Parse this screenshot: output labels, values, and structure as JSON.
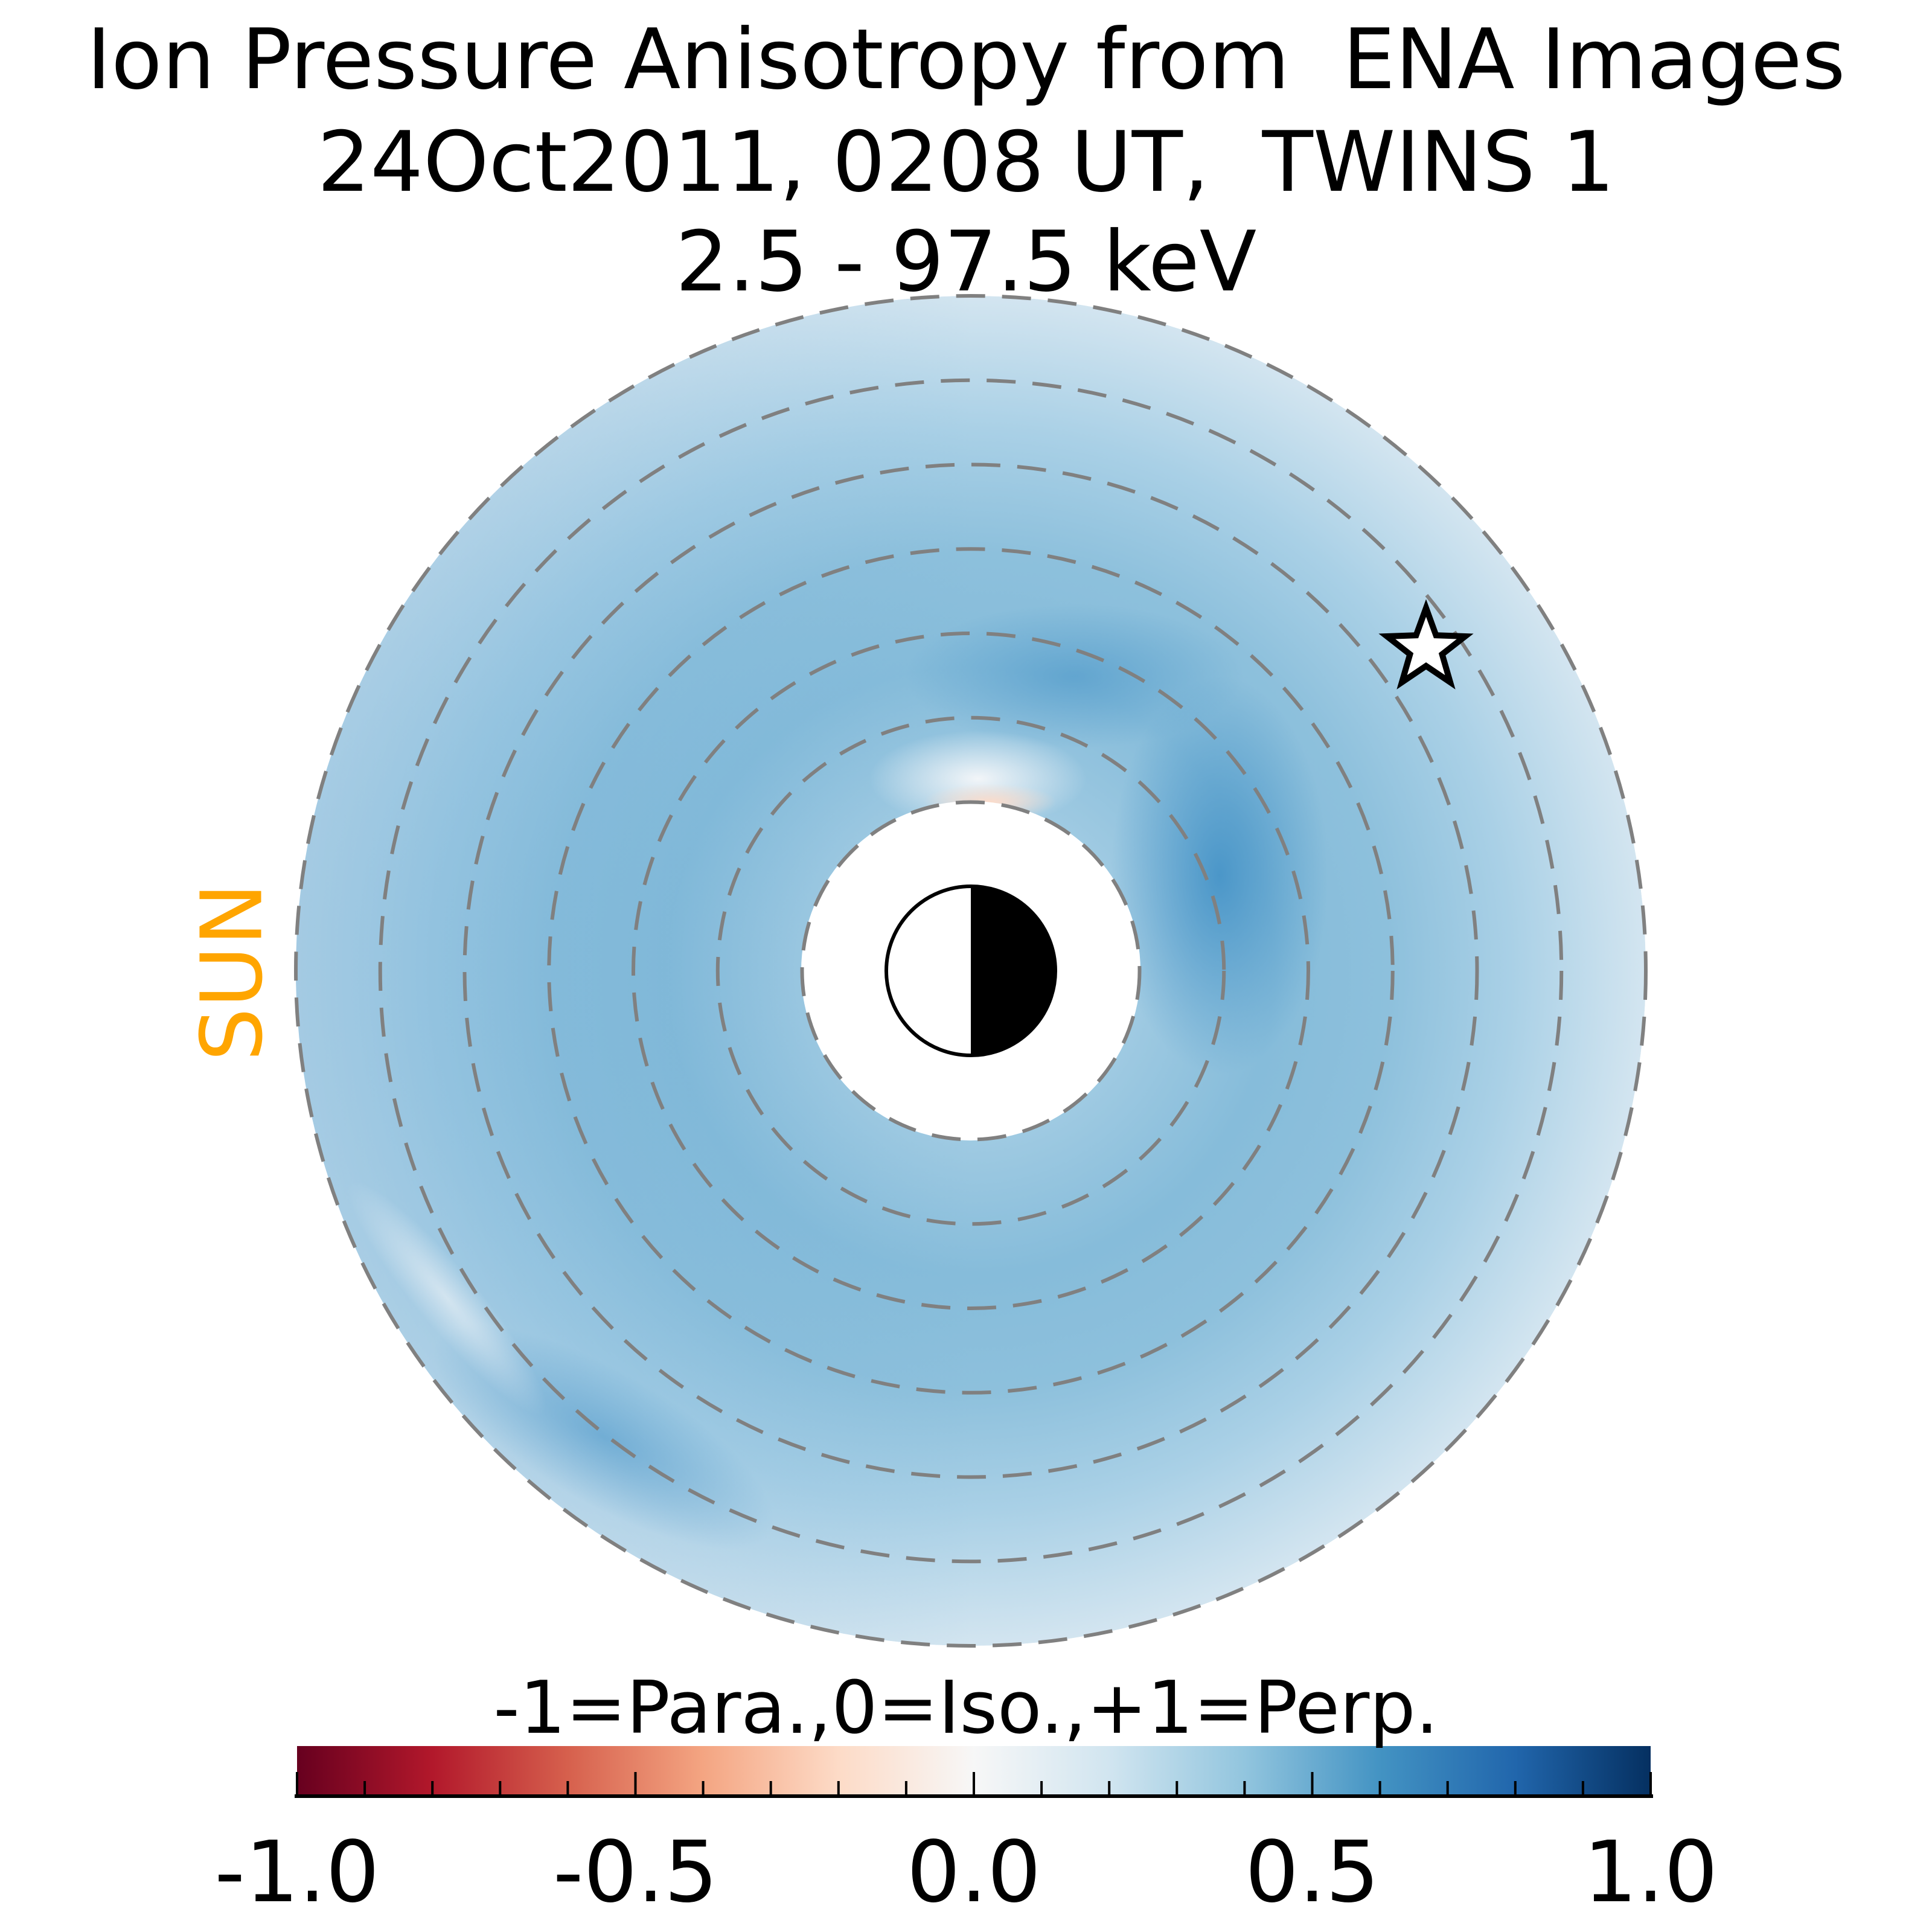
{
  "title_lines": [
    "Ion Pressure Anisotropy from  ENA Images",
    "24Oct2011, 0208 UT,  TWINS 1",
    "2.5 - 97.5 keV"
  ],
  "sun_label": "SUN",
  "colors": {
    "sun": "#FFA500",
    "ring": "#808080"
  },
  "chart_data": {
    "type": "heatmap",
    "title": "Ion Pressure Anisotropy from  ENA Images / 24Oct2011, 0208 UT,  TWINS 1 / 2.5 - 97.5 keV",
    "description_axes": "equatorial polar map, dashed rings every 1 Re",
    "ring_radii_re": [
      2,
      3,
      4,
      5,
      6,
      7,
      8
    ],
    "inner_boundary_re": 2,
    "outer_boundary_re": 8,
    "typical_values": {
      "outer_ring": 0.15,
      "main_ring": 0.4,
      "peak_dusk": 0.55,
      "noon_inner": -0.1
    },
    "colorbar": {
      "label": "-1=Para.,0=Iso.,+1=Perp.",
      "colormap": "RdBu",
      "range": [
        -1.0,
        1.0
      ],
      "ticks": [
        "-1.0",
        "-0.5",
        "0.0",
        "0.5",
        "1.0"
      ],
      "tick_values": [
        -1.0,
        -0.5,
        0.0,
        0.5,
        1.0
      ]
    },
    "markers": [
      {
        "type": "star",
        "meaning": "spacecraft position"
      }
    ]
  }
}
